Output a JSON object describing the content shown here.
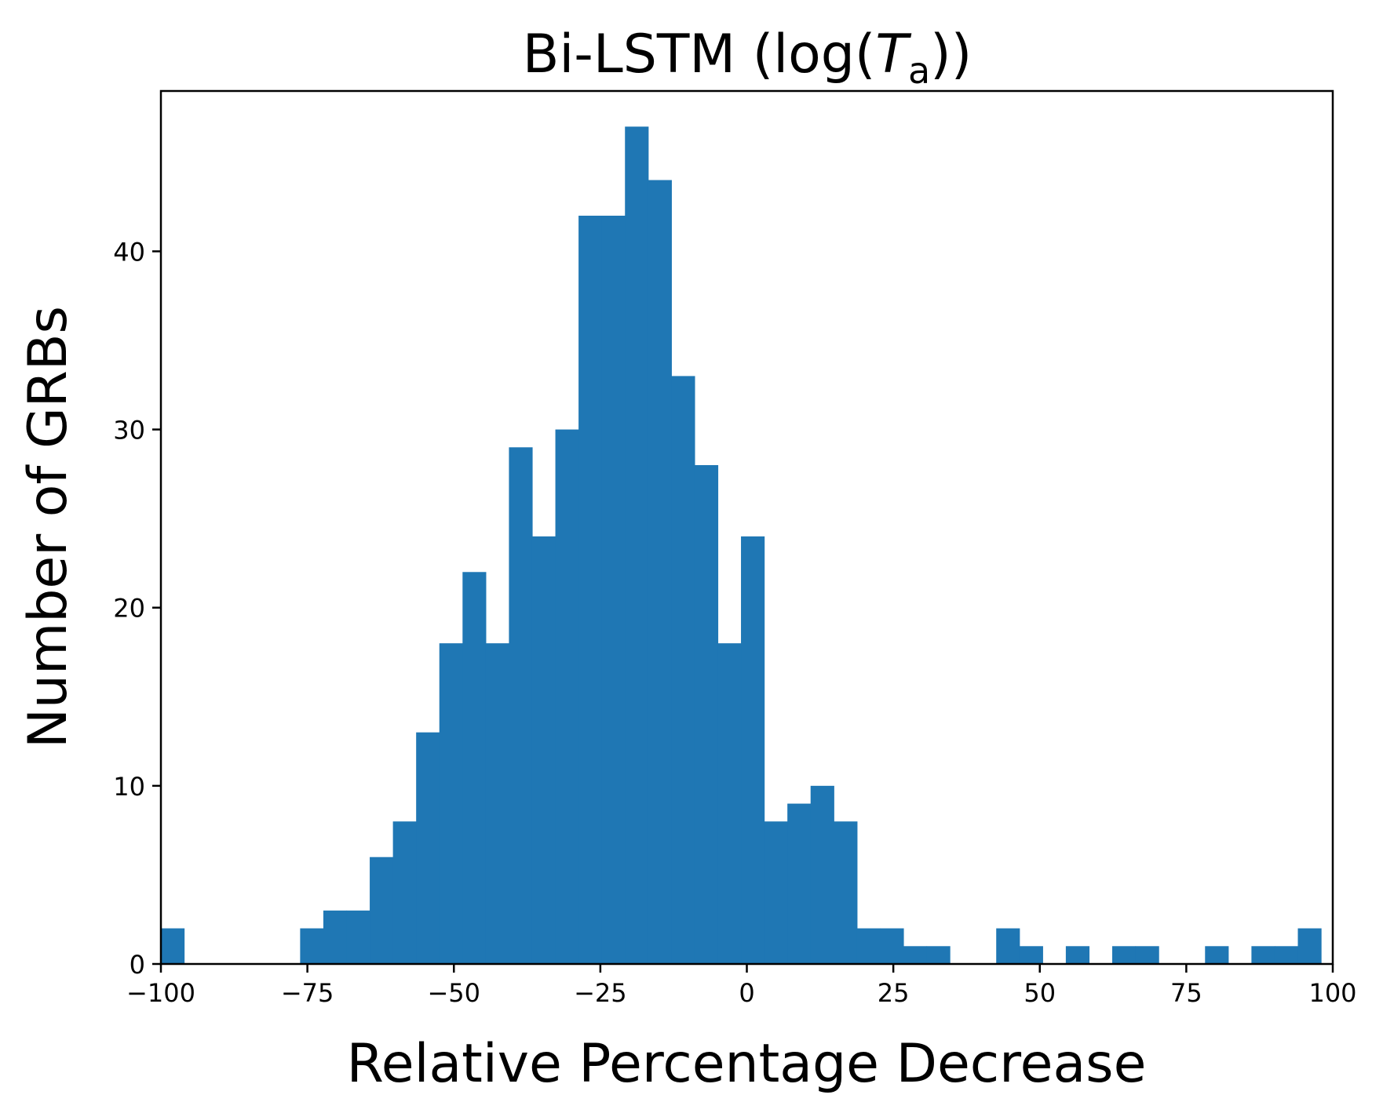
{
  "chart_data": {
    "type": "bar",
    "title": "Bi-LSTM (log(",
    "title_symbol": "T",
    "title_subscript": "a",
    "title_suffix": "))",
    "xlabel": "Relative Percentage Decrease",
    "ylabel": "Number of GRBs",
    "xlim": [
      -100,
      100
    ],
    "ylim": [
      0,
      49
    ],
    "xticks": [
      {
        "value": -100,
        "label": "−100"
      },
      {
        "value": -75,
        "label": "−75"
      },
      {
        "value": -50,
        "label": "−50"
      },
      {
        "value": -25,
        "label": "−25"
      },
      {
        "value": 0,
        "label": "0"
      },
      {
        "value": 25,
        "label": "25"
      },
      {
        "value": 50,
        "label": "50"
      },
      {
        "value": 75,
        "label": "75"
      },
      {
        "value": 100,
        "label": "100"
      }
    ],
    "yticks": [
      {
        "value": 0,
        "label": "0"
      },
      {
        "value": 10,
        "label": "10"
      },
      {
        "value": 20,
        "label": "20"
      },
      {
        "value": 30,
        "label": "30"
      },
      {
        "value": 40,
        "label": "40"
      }
    ],
    "bin_start": -100,
    "bin_width": 3.96,
    "values": [
      2,
      0,
      0,
      0,
      0,
      0,
      2,
      3,
      3,
      6,
      8,
      13,
      18,
      22,
      18,
      29,
      24,
      30,
      42,
      42,
      47,
      44,
      33,
      28,
      18,
      24,
      8,
      9,
      10,
      8,
      2,
      2,
      1,
      1,
      0,
      0,
      2,
      1,
      0,
      1,
      0,
      1,
      1,
      0,
      0,
      1,
      0,
      1,
      1,
      2
    ],
    "grid": false,
    "color": "#1f77b4"
  }
}
